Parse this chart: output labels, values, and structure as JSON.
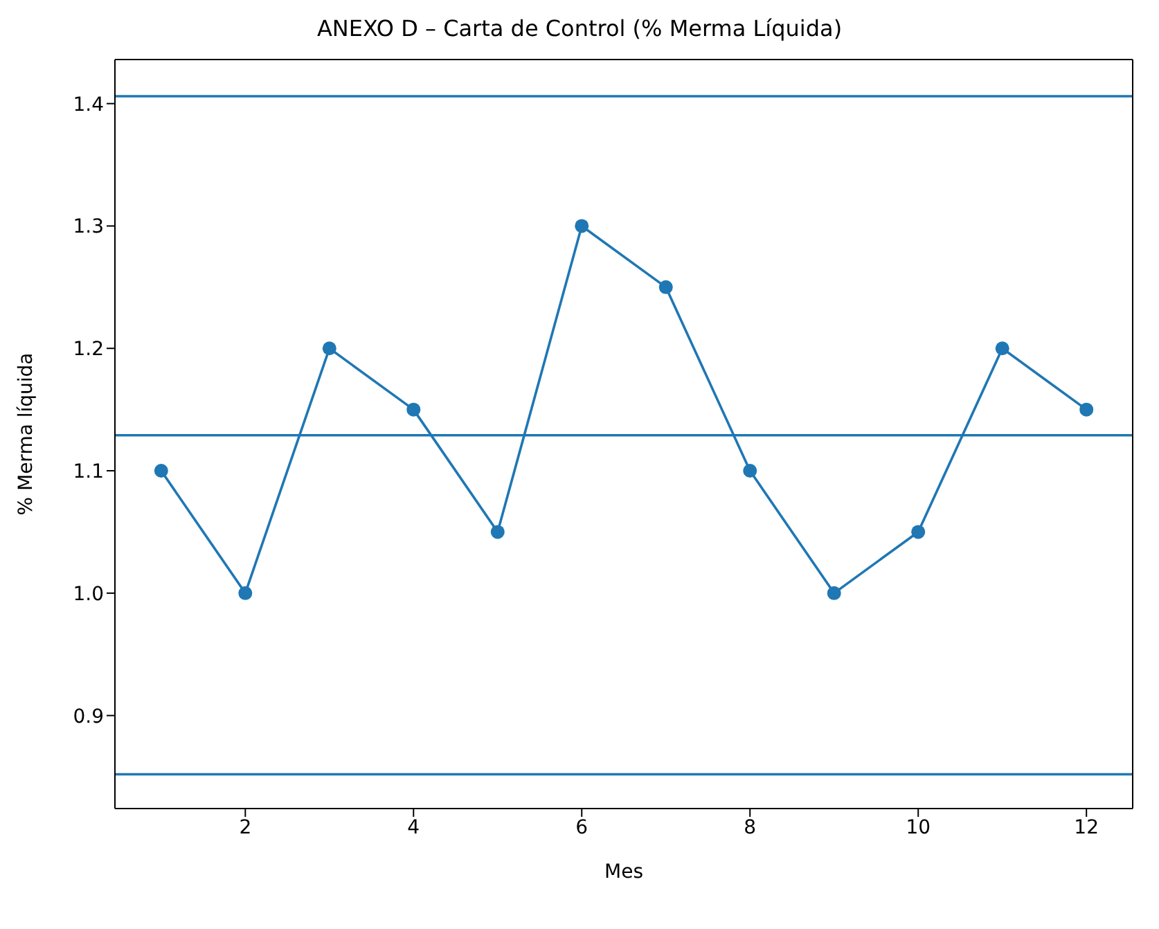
{
  "chart_data": {
    "type": "line",
    "title": "ANEXO D – Carta de Control (% Merma Líquida)",
    "xlabel": "Mes",
    "ylabel": "% Merma líquida",
    "x": [
      1,
      2,
      3,
      4,
      5,
      6,
      7,
      8,
      9,
      10,
      11,
      12
    ],
    "series": [
      {
        "color": "#1f77b4",
        "values": [
          1.1,
          1.0,
          1.2,
          1.15,
          1.05,
          1.3,
          1.25,
          1.1,
          1.0,
          1.05,
          1.2,
          1.15
        ]
      }
    ],
    "xlim": [
      0.45,
      12.55
    ],
    "xticks": [
      2,
      4,
      6,
      8,
      10,
      12
    ],
    "ylim": [
      0.824,
      1.436
    ],
    "yticks": [
      {
        "value": 0.9,
        "label": "0.9"
      },
      {
        "value": 1.0,
        "label": "1.0"
      },
      {
        "value": 1.1,
        "label": "1.1"
      },
      {
        "value": 1.2,
        "label": "1.2"
      },
      {
        "value": 1.3,
        "label": "1.3"
      },
      {
        "value": 1.4,
        "label": "1.4"
      }
    ],
    "ref_lines": [
      {
        "axis": "y",
        "value": 1.406,
        "color": "#1f77b4"
      },
      {
        "axis": "y",
        "value": 1.129,
        "color": "#1f77b4"
      },
      {
        "axis": "y",
        "value": 0.852,
        "color": "#1f77b4"
      }
    ],
    "grid": false,
    "legend": false,
    "marker": "circle",
    "line_style": "solid"
  }
}
